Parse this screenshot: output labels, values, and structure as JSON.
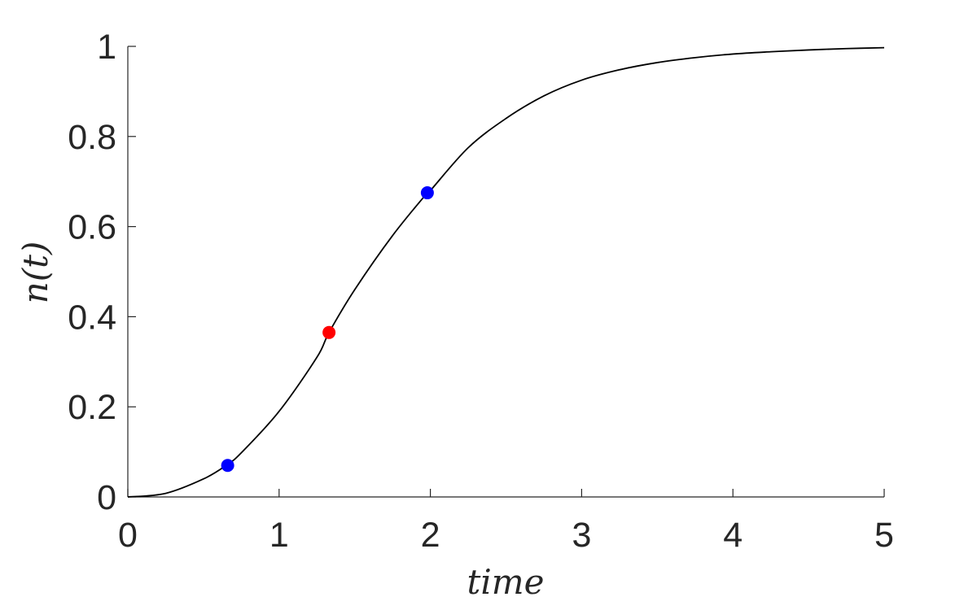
{
  "chart_data": {
    "type": "line",
    "title": "",
    "xlabel": "time",
    "ylabel": "n(t)",
    "xlim": [
      0,
      5
    ],
    "ylim": [
      0,
      1
    ],
    "xticks": [
      "0",
      "1",
      "2",
      "3",
      "4",
      "5"
    ],
    "yticks": [
      "0",
      "0.2",
      "0.4",
      "0.6",
      "0.8",
      "1"
    ],
    "grid": false,
    "series": [
      {
        "color": "#000000",
        "x": [
          0,
          0.25,
          0.5,
          0.65,
          0.75,
          1.0,
          1.25,
          1.33,
          1.5,
          1.75,
          1.98,
          2.0,
          2.25,
          2.5,
          2.75,
          3.0,
          3.25,
          3.5,
          3.75,
          4.0,
          4.25,
          4.5,
          4.75,
          5.0
        ],
        "y": [
          0,
          0.008,
          0.04,
          0.07,
          0.098,
          0.19,
          0.31,
          0.365,
          0.46,
          0.58,
          0.675,
          0.68,
          0.775,
          0.84,
          0.89,
          0.925,
          0.948,
          0.964,
          0.975,
          0.983,
          0.988,
          0.992,
          0.995,
          0.997
        ]
      }
    ],
    "points": [
      {
        "x": 0.66,
        "y": 0.07,
        "color": "#0000ff"
      },
      {
        "x": 1.33,
        "y": 0.365,
        "color": "#ff0000"
      },
      {
        "x": 1.98,
        "y": 0.675,
        "color": "#0000ff"
      }
    ]
  }
}
